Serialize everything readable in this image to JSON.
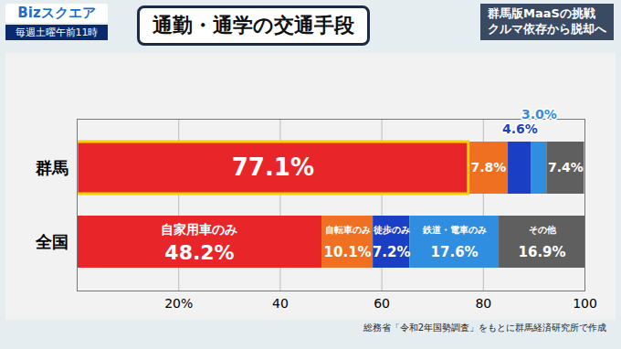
{
  "chart_data": {
    "type": "bar",
    "orientation": "horizontal",
    "stacked": true,
    "data_labels": true,
    "grid": true,
    "title": "通勤・通学の交通手段",
    "annotations": [
      "Bizスクエア",
      "毎週土曜午前11時",
      "群馬版MaaSの挑戦",
      "クルマ依存から脱却へ"
    ],
    "source": "総務省「令和2年国勢調査」をもとに群馬経済研究所で作成",
    "categories": [
      "群馬",
      "全国"
    ],
    "series": [
      {
        "name": "自家用車のみ",
        "color": "#e8262a",
        "values": [
          77.1,
          48.2
        ],
        "value_labels": [
          "77.1%",
          "48.2%"
        ]
      },
      {
        "name": "自転車のみ",
        "color": "#f07021",
        "values": [
          7.8,
          10.1
        ],
        "value_labels": [
          "7.8%",
          "10.1%"
        ]
      },
      {
        "name": "徒歩のみ",
        "color": "#1a3fc4",
        "values": [
          4.6,
          7.2
        ],
        "value_labels": [
          "4.6%",
          "7.2%"
        ]
      },
      {
        "name": "鉄道・電車のみ",
        "color": "#2f8ee0",
        "values": [
          3.0,
          17.6
        ],
        "value_labels": [
          "3.0%",
          "17.6%"
        ]
      },
      {
        "name": "その他",
        "color": "#5f5f5f",
        "values": [
          7.4,
          16.9
        ],
        "value_labels": [
          "7.4%",
          "16.9%"
        ]
      }
    ],
    "xlim": [
      0,
      100
    ],
    "xticks": [
      {
        "value": 20,
        "label": "20%"
      },
      40,
      60,
      80,
      100
    ]
  }
}
